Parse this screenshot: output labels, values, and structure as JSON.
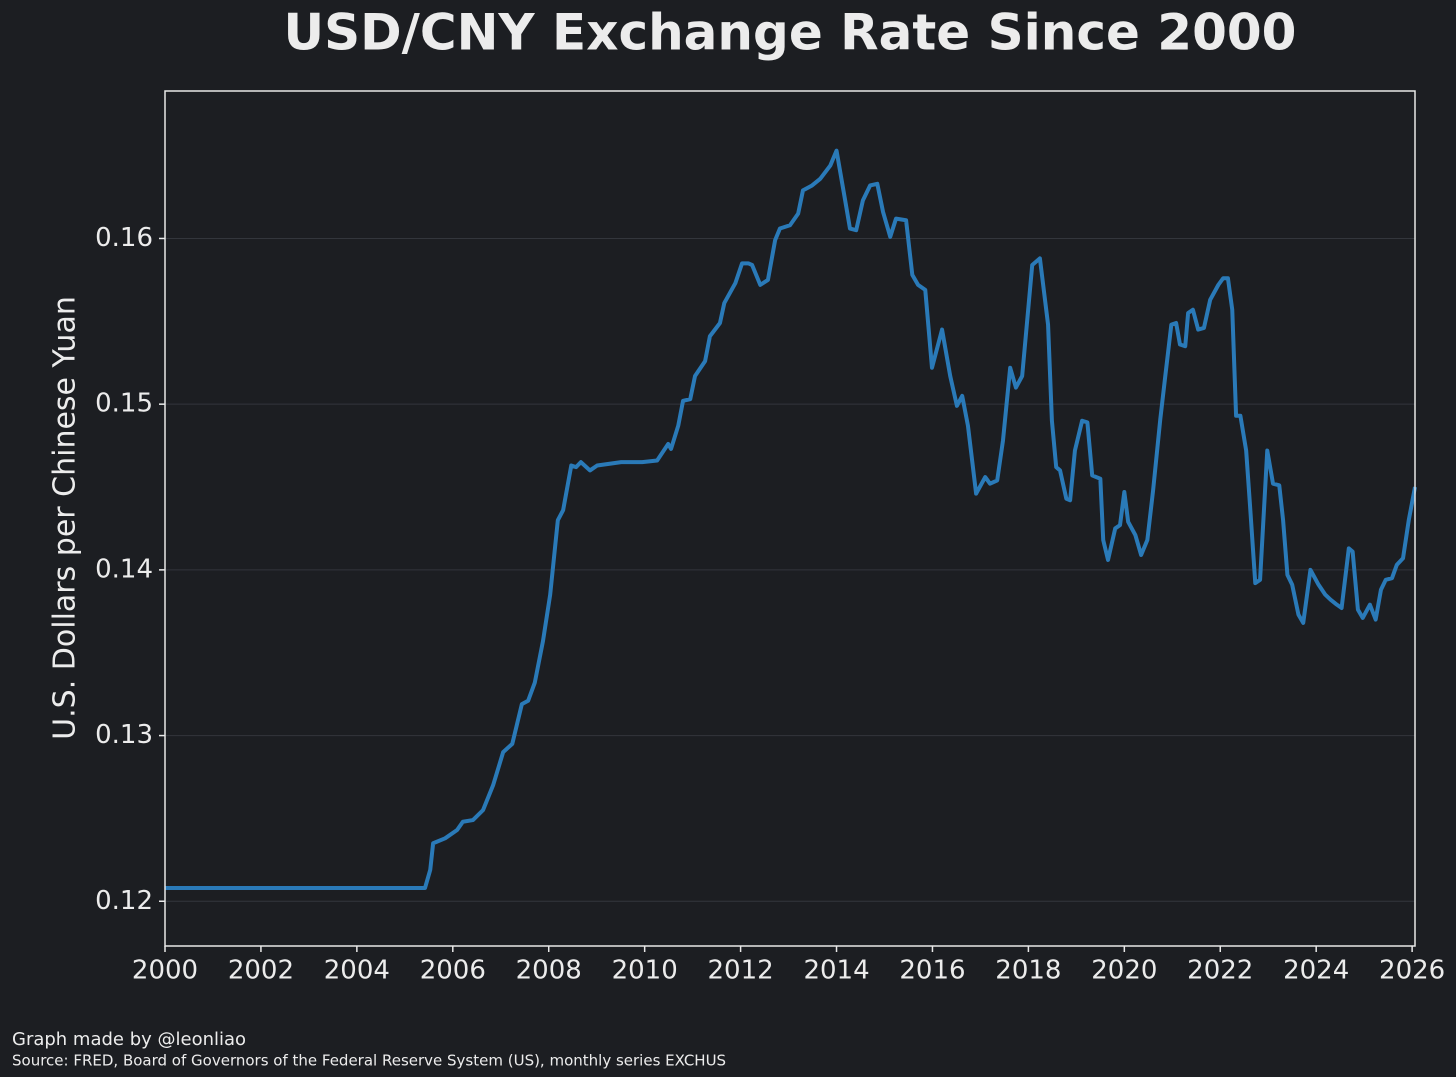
{
  "chart_data": {
    "type": "line",
    "title": "USD/CNY Exchange Rate Since 2000",
    "y_label": "U.S. Dollars per Chinese Yuan",
    "credit": "Graph made by @leonliao",
    "source": "Source: FRED, Board of Governors of the Federal Reserve System (US), monthly series EXCHUS",
    "x": [
      2000,
      2005.42,
      2005.53,
      2005.59,
      2005.84,
      2006.09,
      2006.21,
      2006.42,
      2006.63,
      2006.84,
      2007.05,
      2007.24,
      2007.44,
      2007.57,
      2007.71,
      2007.88,
      2008.03,
      2008.19,
      2008.3,
      2008.47,
      2008.57,
      2008.67,
      2008.86,
      2009.01,
      2009.51,
      2009.95,
      2010.26,
      2010.49,
      2010.55,
      2010.7,
      2010.8,
      2010.95,
      2011.05,
      2011.26,
      2011.36,
      2011.57,
      2011.66,
      2011.89,
      2012.03,
      2012.16,
      2012.24,
      2012.41,
      2012.57,
      2012.72,
      2012.82,
      2013.03,
      2013.2,
      2013.3,
      2013.49,
      2013.66,
      2013.87,
      2014.0,
      2014.18,
      2014.28,
      2014.41,
      2014.55,
      2014.7,
      2014.85,
      2014.97,
      2015.12,
      2015.24,
      2015.45,
      2015.58,
      2015.7,
      2015.85,
      2015.99,
      2016.2,
      2016.37,
      2016.51,
      2016.62,
      2016.74,
      2016.91,
      2017.1,
      2017.2,
      2017.35,
      2017.47,
      2017.62,
      2017.74,
      2017.87,
      2018.08,
      2018.24,
      2018.41,
      2018.49,
      2018.58,
      2018.66,
      2018.79,
      2018.87,
      2018.97,
      2019.12,
      2019.23,
      2019.33,
      2019.5,
      2019.56,
      2019.66,
      2019.81,
      2019.91,
      2020.0,
      2020.08,
      2020.23,
      2020.35,
      2020.48,
      2020.6,
      2020.75,
      2020.85,
      2020.98,
      2021.08,
      2021.16,
      2021.27,
      2021.33,
      2021.43,
      2021.54,
      2021.66,
      2021.79,
      2021.96,
      2022.06,
      2022.16,
      2022.25,
      2022.33,
      2022.42,
      2022.54,
      2022.62,
      2022.73,
      2022.83,
      2022.98,
      2023.1,
      2023.23,
      2023.31,
      2023.4,
      2023.5,
      2023.63,
      2023.73,
      2023.88,
      2024.05,
      2024.19,
      2024.3,
      2024.43,
      2024.53,
      2024.68,
      2024.76,
      2024.87,
      2024.97,
      2025.12,
      2025.24,
      2025.35,
      2025.45,
      2025.58,
      2025.68,
      2025.81,
      2025.93,
      2026.06
    ],
    "series": [
      {
        "name": "EXCHUS",
        "color": "#2a7ab8",
        "values": [
          0.1208,
          0.1208,
          0.1219,
          0.1235,
          0.1238,
          0.1243,
          0.1248,
          0.1249,
          0.1255,
          0.127,
          0.129,
          0.1295,
          0.1319,
          0.1321,
          0.1332,
          0.1357,
          0.1385,
          0.143,
          0.1436,
          0.1463,
          0.1462,
          0.1465,
          0.146,
          0.1463,
          0.1465,
          0.1465,
          0.1466,
          0.1476,
          0.1473,
          0.1487,
          0.1502,
          0.1503,
          0.1517,
          0.1526,
          0.1541,
          0.1549,
          0.1561,
          0.1573,
          0.1585,
          0.1585,
          0.1584,
          0.1572,
          0.1575,
          0.1599,
          0.1606,
          0.1608,
          0.1615,
          0.1629,
          0.1632,
          0.1636,
          0.1644,
          0.1653,
          0.1623,
          0.1606,
          0.1605,
          0.1623,
          0.1632,
          0.1633,
          0.1616,
          0.1601,
          0.1612,
          0.1611,
          0.1578,
          0.1572,
          0.1569,
          0.1522,
          0.1545,
          0.1517,
          0.1499,
          0.1505,
          0.1487,
          0.1446,
          0.1456,
          0.1452,
          0.1454,
          0.1478,
          0.1522,
          0.151,
          0.1517,
          0.1584,
          0.1588,
          0.1548,
          0.149,
          0.1462,
          0.146,
          0.1443,
          0.1442,
          0.1472,
          0.149,
          0.1489,
          0.1457,
          0.1455,
          0.1418,
          0.1406,
          0.1425,
          0.1427,
          0.1447,
          0.1429,
          0.1421,
          0.1409,
          0.1418,
          0.1448,
          0.1491,
          0.1516,
          0.1548,
          0.1549,
          0.1536,
          0.1535,
          0.1555,
          0.1557,
          0.1545,
          0.1546,
          0.1563,
          0.1572,
          0.1576,
          0.1576,
          0.1557,
          0.1493,
          0.1493,
          0.1472,
          0.1439,
          0.1392,
          0.1394,
          0.1472,
          0.1452,
          0.1451,
          0.143,
          0.1397,
          0.1391,
          0.1373,
          0.1368,
          0.14,
          0.1391,
          0.1385,
          0.1382,
          0.1379,
          0.1377,
          0.1413,
          0.1411,
          0.1376,
          0.1371,
          0.1379,
          0.137,
          0.1388,
          0.1394,
          0.1395,
          0.1403,
          0.1407,
          0.143,
          0.145
        ]
      }
    ],
    "xlim": [
      2000,
      2026.06
    ],
    "ylim": [
      0.1173,
      0.1689
    ],
    "xticks": [
      2000,
      2002,
      2004,
      2006,
      2008,
      2010,
      2012,
      2014,
      2016,
      2018,
      2020,
      2022,
      2024,
      2026
    ],
    "yticks": [
      0.12,
      0.13,
      0.14,
      0.15,
      0.16
    ],
    "grid": true
  }
}
